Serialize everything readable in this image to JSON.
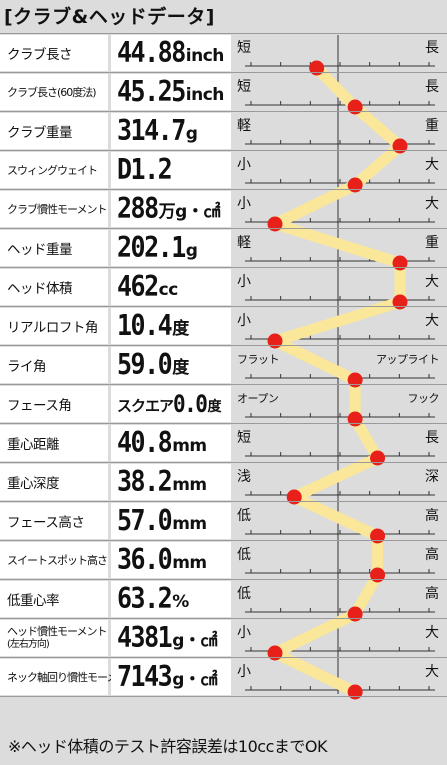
{
  "title": "[クラブ&ヘッドデータ]",
  "colors": {
    "line": "#fbe79a",
    "dot": "#e8201a",
    "label_bg": "#ffffff",
    "panel_bg": "#dcdcdc"
  },
  "rows": [
    {
      "label": "クラブ長さ",
      "value": "44.88",
      "unit": "inch",
      "lo": "短",
      "hi": "長",
      "level": 0.26
    },
    {
      "label": "クラブ長さ(60度法)",
      "value": "45.25",
      "unit": "inch",
      "lo": "短",
      "hi": "長",
      "level": 0.5
    },
    {
      "label": "クラブ重量",
      "value": "314.7",
      "unit": "g",
      "lo": "軽",
      "hi": "重",
      "level": 0.78
    },
    {
      "label": "スウィングウェイト",
      "value": "D1.2",
      "unit": "",
      "lo": "小",
      "hi": "大",
      "level": 0.5
    },
    {
      "label": "クラブ慣性モーメント",
      "value": "288",
      "unit": "万g・㎠",
      "lo": "小",
      "hi": "大",
      "level": 0.0
    },
    {
      "label": "ヘッド重量",
      "value": "202.1",
      "unit": "g",
      "lo": "軽",
      "hi": "重",
      "level": 0.78
    },
    {
      "label": "ヘッド体積",
      "value": "462",
      "unit": "cc",
      "lo": "小",
      "hi": "大",
      "level": 0.78
    },
    {
      "label": "リアルロフト角",
      "value": "10.4",
      "unit": "度",
      "lo": "小",
      "hi": "大",
      "level": 0.0
    },
    {
      "label": "ライ角",
      "value": "59.0",
      "unit": "度",
      "lo": "フラット",
      "hi": "アップライト",
      "level": 0.5
    },
    {
      "label": "フェース角",
      "prefix": "スクエア",
      "value": "0.0",
      "unit": "度",
      "lo": "オープン",
      "hi": "フック",
      "level": 0.5
    },
    {
      "label": "重心距離",
      "value": "40.8",
      "unit": "mm",
      "lo": "短",
      "hi": "長",
      "level": 0.64
    },
    {
      "label": "重心深度",
      "value": "38.2",
      "unit": "mm",
      "lo": "浅",
      "hi": "深",
      "level": 0.12
    },
    {
      "label": "フェース高さ",
      "value": "57.0",
      "unit": "mm",
      "lo": "低",
      "hi": "高",
      "level": 0.64
    },
    {
      "label": "スイートスポット高さ",
      "value": "36.0",
      "unit": "mm",
      "lo": "低",
      "hi": "高",
      "level": 0.64
    },
    {
      "label": "低重心率",
      "value": "63.2",
      "unit": "%",
      "lo": "低",
      "hi": "高",
      "level": 0.5
    },
    {
      "label": "ヘッド慣性モーメント",
      "label2": "(左右方向)",
      "value": "4381",
      "unit": "g・㎠",
      "lo": "小",
      "hi": "大",
      "level": 0.0
    },
    {
      "label": "ネック軸回り慣性モーメント",
      "value": "7143",
      "unit": "g・㎠",
      "lo": "小",
      "hi": "大",
      "level": 0.5
    }
  ],
  "note": "※ヘッド体積のテスト許容誤差は10ccまでOK"
}
